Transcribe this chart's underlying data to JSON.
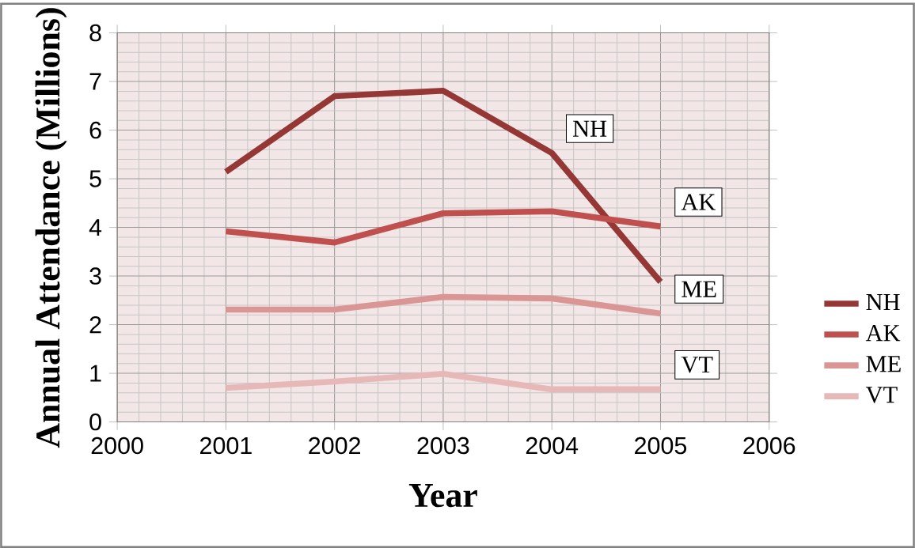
{
  "chart_data": {
    "type": "line",
    "xlabel": "Year",
    "ylabel": "Annual Attendance (Millions)",
    "x": [
      2001,
      2002,
      2003,
      2004,
      2005
    ],
    "series": [
      {
        "name": "NH",
        "color": "#953735",
        "values": [
          5.14,
          6.7,
          6.81,
          5.53,
          2.88
        ]
      },
      {
        "name": "AK",
        "color": "#c0504d",
        "values": [
          3.92,
          3.69,
          4.29,
          4.33,
          4.02
        ]
      },
      {
        "name": "ME",
        "color": "#d99694",
        "values": [
          2.31,
          2.31,
          2.57,
          2.54,
          2.23
        ]
      },
      {
        "name": "VT",
        "color": "#e6b9b8",
        "values": [
          0.7,
          0.83,
          0.99,
          0.67,
          0.67
        ]
      }
    ],
    "annotations": [
      "NH",
      "AK",
      "ME",
      "VT"
    ],
    "xlim": [
      2000,
      2006
    ],
    "xticks": [
      2000,
      2001,
      2002,
      2003,
      2004,
      2005,
      2006
    ],
    "ylim": [
      0,
      8
    ],
    "yticks": [
      0,
      1,
      2,
      3,
      4,
      5,
      6,
      7,
      8
    ],
    "grid": true,
    "legend": "right"
  }
}
